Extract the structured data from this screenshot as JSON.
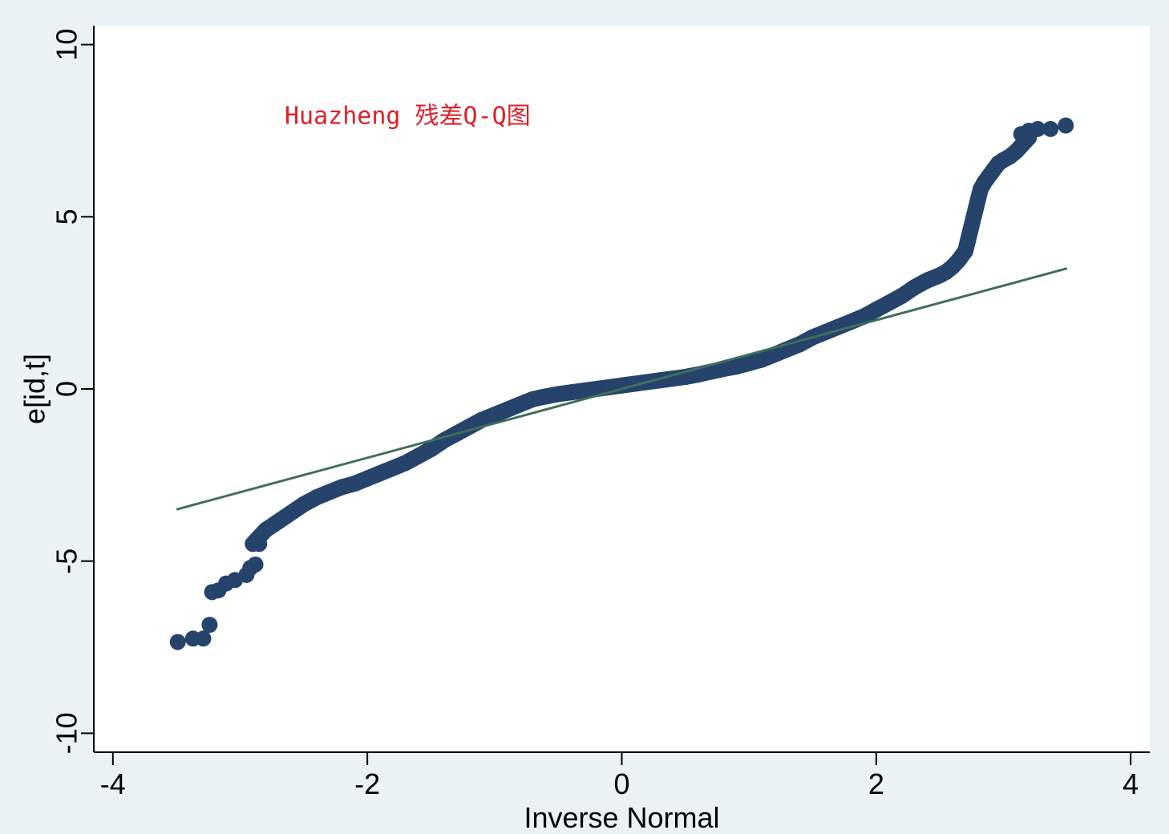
{
  "chart_data": {
    "type": "scatter",
    "title": "",
    "xlabel": "Inverse Normal",
    "ylabel": "e[id,t]",
    "xlim": [
      -4.15,
      4.15
    ],
    "ylim": [
      -10.55,
      10.55
    ],
    "x_ticks": [
      -4,
      -2,
      0,
      2,
      4
    ],
    "y_ticks": [
      -10,
      -5,
      0,
      5,
      10
    ],
    "x_tick_labels": [
      "-4",
      "-2",
      "0",
      "2",
      "4"
    ],
    "y_tick_labels": [
      "-10",
      "-5",
      "0",
      "5",
      "10"
    ],
    "grid": false,
    "legend": "none",
    "annotation": {
      "text": "Huazheng 残差Q-Q图",
      "x": -2.65,
      "y": 7.7,
      "color": "#e0202a"
    },
    "colors": {
      "points": "#25436b",
      "reference_line": "#3f6f5c",
      "plot_background": "#ffffff",
      "page_background": "#eaf2f3"
    },
    "reference_line": {
      "x": [
        -3.5,
        3.5
      ],
      "y": [
        -3.5,
        3.5
      ]
    },
    "series": [
      {
        "kind": "isolated_points",
        "x": [
          -3.49,
          -3.37,
          -3.29,
          -3.24,
          -3.22,
          -3.17,
          -3.11,
          -3.04,
          -2.95,
          -2.92,
          -2.88,
          -2.85,
          3.14,
          3.2,
          3.27,
          3.37,
          3.49
        ],
        "y": [
          -7.35,
          -7.25,
          -7.25,
          -6.85,
          -5.9,
          -5.85,
          -5.65,
          -5.55,
          -5.4,
          -5.2,
          -5.1,
          -4.5,
          7.4,
          7.5,
          7.55,
          7.55,
          7.65
        ]
      },
      {
        "kind": "dense_curve",
        "x": [
          -2.9,
          -2.85,
          -2.8,
          -2.7,
          -2.6,
          -2.5,
          -2.4,
          -2.3,
          -2.2,
          -2.1,
          -2.0,
          -1.9,
          -1.8,
          -1.7,
          -1.6,
          -1.5,
          -1.4,
          -1.3,
          -1.2,
          -1.1,
          -1.0,
          -0.9,
          -0.8,
          -0.7,
          -0.6,
          -0.5,
          -0.4,
          -0.3,
          -0.2,
          -0.1,
          0.0,
          0.1,
          0.2,
          0.3,
          0.4,
          0.5,
          0.6,
          0.7,
          0.8,
          0.9,
          1.0,
          1.1,
          1.2,
          1.3,
          1.4,
          1.5,
          1.6,
          1.7,
          1.8,
          1.9,
          2.0,
          2.1,
          2.2,
          2.3,
          2.4,
          2.5,
          2.55,
          2.6,
          2.65,
          2.7,
          2.72,
          2.74,
          2.76,
          2.78,
          2.8,
          2.82,
          2.85,
          2.88,
          2.92,
          2.96,
          3.0,
          3.05,
          3.1,
          3.15,
          3.2
        ],
        "y": [
          -4.5,
          -4.3,
          -4.1,
          -3.85,
          -3.6,
          -3.35,
          -3.15,
          -3.0,
          -2.85,
          -2.75,
          -2.6,
          -2.45,
          -2.3,
          -2.15,
          -1.95,
          -1.75,
          -1.5,
          -1.3,
          -1.1,
          -0.9,
          -0.75,
          -0.6,
          -0.45,
          -0.3,
          -0.22,
          -0.15,
          -0.1,
          -0.05,
          0.0,
          0.05,
          0.1,
          0.15,
          0.2,
          0.25,
          0.3,
          0.35,
          0.42,
          0.5,
          0.58,
          0.65,
          0.75,
          0.85,
          1.0,
          1.15,
          1.3,
          1.5,
          1.65,
          1.8,
          1.95,
          2.1,
          2.3,
          2.5,
          2.7,
          2.95,
          3.15,
          3.3,
          3.4,
          3.55,
          3.75,
          4.0,
          4.3,
          4.6,
          4.9,
          5.2,
          5.5,
          5.8,
          6.0,
          6.15,
          6.35,
          6.55,
          6.65,
          6.75,
          6.9,
          7.1,
          7.3
        ]
      }
    ]
  }
}
